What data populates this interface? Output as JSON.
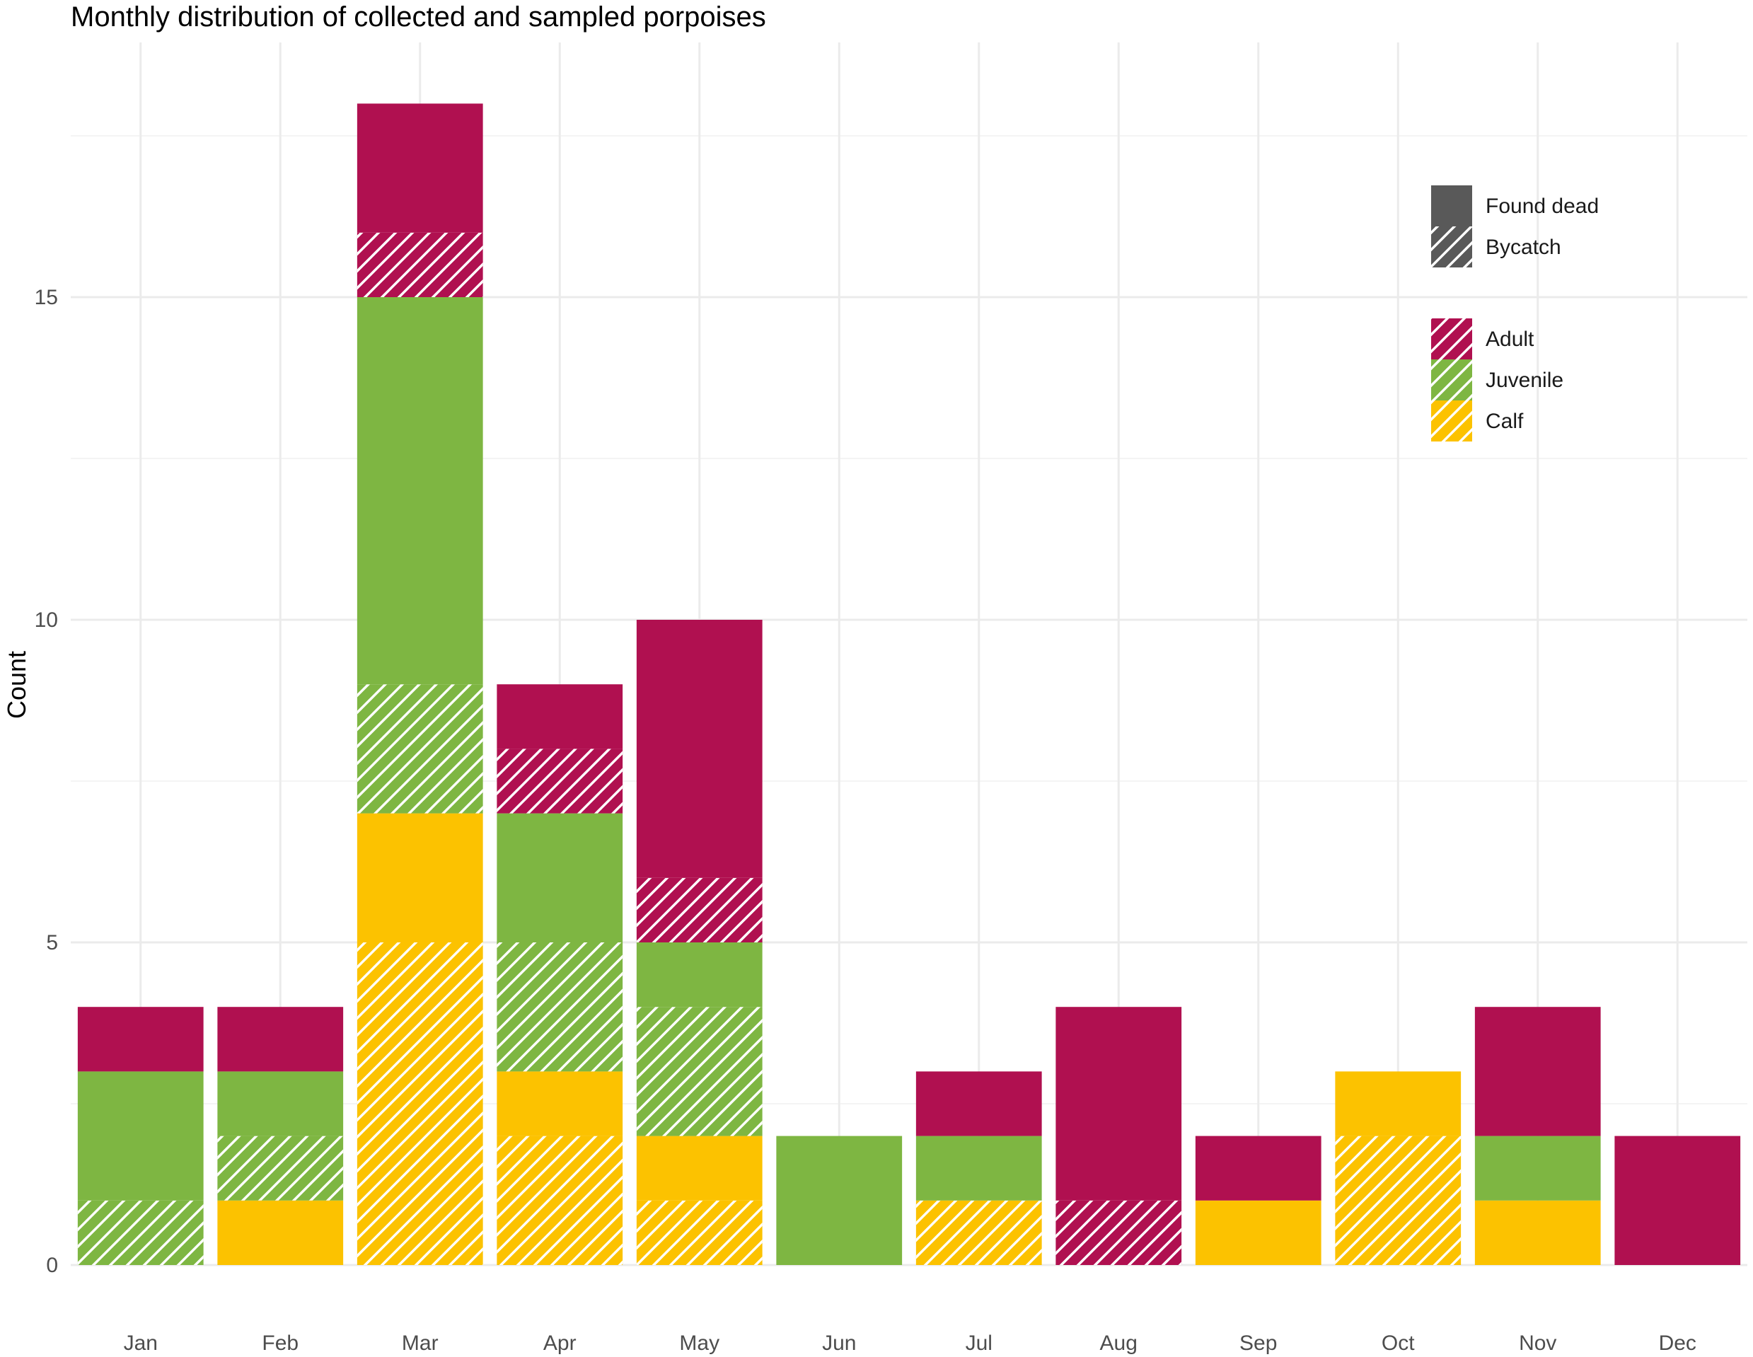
{
  "chart_data": {
    "type": "bar",
    "stacked": true,
    "title": "Monthly distribution of collected and sampled porpoises",
    "xlabel": "",
    "ylabel": "Count",
    "ylim": [
      0,
      18
    ],
    "y_ticks": [
      0,
      5,
      10,
      15
    ],
    "categories": [
      "Jan",
      "Feb",
      "Mar",
      "Apr",
      "May",
      "Jun",
      "Jul",
      "Aug",
      "Sep",
      "Oct",
      "Nov",
      "Dec"
    ],
    "colors": {
      "Adult": "#b01050",
      "Juvenile": "#7eb642",
      "Calf": "#fcc200",
      "legend_gray": "#595959"
    },
    "stack_order": [
      {
        "age": "Calf",
        "cause": "Bycatch"
      },
      {
        "age": "Calf",
        "cause": "Found dead"
      },
      {
        "age": "Juvenile",
        "cause": "Bycatch"
      },
      {
        "age": "Juvenile",
        "cause": "Found dead"
      },
      {
        "age": "Adult",
        "cause": "Bycatch"
      },
      {
        "age": "Adult",
        "cause": "Found dead"
      }
    ],
    "series": [
      {
        "name": "Calf - Bycatch",
        "age": "Calf",
        "cause": "Bycatch",
        "values": [
          0,
          0,
          5,
          2,
          1,
          0,
          1,
          0,
          0,
          2,
          0,
          0
        ]
      },
      {
        "name": "Calf - Found dead",
        "age": "Calf",
        "cause": "Found dead",
        "values": [
          0,
          1,
          2,
          1,
          1,
          0,
          0,
          0,
          1,
          1,
          1,
          0
        ]
      },
      {
        "name": "Juvenile - Bycatch",
        "age": "Juvenile",
        "cause": "Bycatch",
        "values": [
          1,
          1,
          2,
          2,
          2,
          0,
          0,
          0,
          0,
          0,
          0,
          0
        ]
      },
      {
        "name": "Juvenile - Found dead",
        "age": "Juvenile",
        "cause": "Found dead",
        "values": [
          2,
          1,
          6,
          2,
          1,
          2,
          1,
          0,
          0,
          0,
          1,
          0
        ]
      },
      {
        "name": "Adult - Bycatch",
        "age": "Adult",
        "cause": "Bycatch",
        "values": [
          0,
          0,
          1,
          1,
          1,
          0,
          0,
          1,
          0,
          0,
          0,
          0
        ]
      },
      {
        "name": "Adult - Found dead",
        "age": "Adult",
        "cause": "Found dead",
        "values": [
          1,
          1,
          2,
          1,
          4,
          0,
          1,
          3,
          1,
          0,
          2,
          2
        ]
      }
    ],
    "legend": {
      "position": "top-right",
      "cause_entries": [
        {
          "label": "Found dead",
          "pattern": "solid"
        },
        {
          "label": "Bycatch",
          "pattern": "hatched"
        }
      ],
      "age_entries": [
        {
          "label": "Adult",
          "age": "Adult"
        },
        {
          "label": "Juvenile",
          "age": "Juvenile"
        },
        {
          "label": "Calf",
          "age": "Calf"
        }
      ]
    }
  }
}
